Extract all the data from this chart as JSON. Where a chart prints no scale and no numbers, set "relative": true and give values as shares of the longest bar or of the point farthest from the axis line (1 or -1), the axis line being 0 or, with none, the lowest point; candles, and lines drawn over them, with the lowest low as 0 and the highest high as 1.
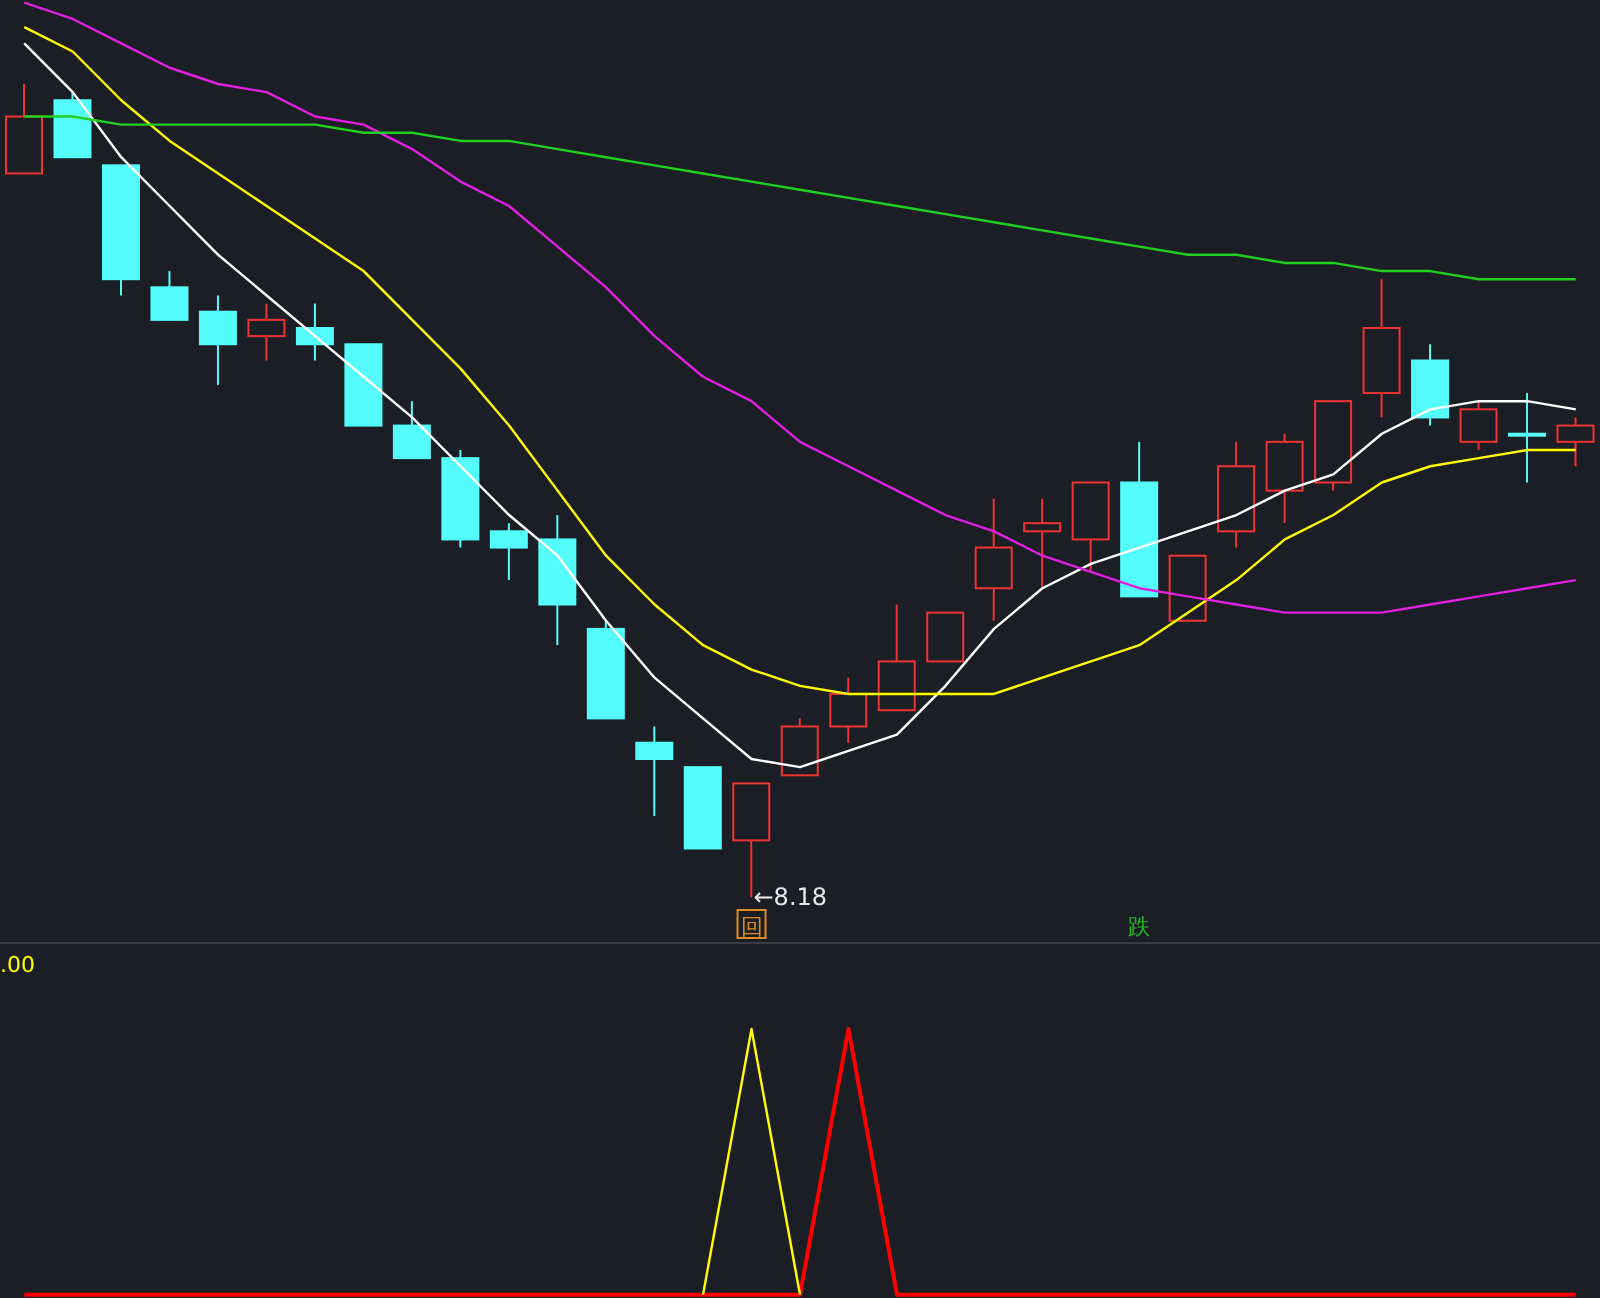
{
  "chart_data": [
    {
      "type": "candlestick",
      "relative": true,
      "categories": [
        null,
        null,
        null,
        null,
        null,
        null,
        null,
        null,
        null,
        null,
        null,
        null,
        null,
        null,
        null,
        null,
        null,
        null,
        null,
        null,
        null,
        null,
        null,
        null,
        null,
        null,
        null,
        null,
        null,
        null,
        null,
        null,
        null
      ],
      "ohlc": [
        [
          0.89,
          1,
          0.89,
          0.96
        ],
        [
          0.98,
          0.99,
          0.91,
          0.91
        ],
        [
          0.9,
          0.9,
          0.74,
          0.76
        ],
        [
          0.75,
          0.77,
          0.71,
          0.71
        ],
        [
          0.72,
          0.74,
          0.63,
          0.68
        ],
        [
          0.69,
          0.73,
          0.66,
          0.71
        ],
        [
          0.7,
          0.73,
          0.66,
          0.68
        ],
        [
          0.68,
          0.68,
          0.58,
          0.58
        ],
        [
          0.58,
          0.61,
          0.54,
          0.54
        ],
        [
          0.54,
          0.55,
          0.43,
          0.44
        ],
        [
          0.45,
          0.46,
          0.39,
          0.43
        ],
        [
          0.44,
          0.47,
          0.31,
          0.36
        ],
        [
          0.33,
          0.34,
          0.22,
          0.22
        ],
        [
          0.19,
          0.21,
          0.1,
          0.17
        ],
        [
          0.16,
          0.16,
          0.06,
          0.06
        ],
        [
          0.07,
          0.14,
          0,
          0.14
        ],
        [
          0.15,
          0.22,
          0.15,
          0.21
        ],
        [
          0.21,
          0.27,
          0.19,
          0.25
        ],
        [
          0.23,
          0.36,
          0.23,
          0.29
        ],
        [
          0.29,
          0.35,
          0.29,
          0.35
        ],
        [
          0.38,
          0.49,
          0.34,
          0.43
        ],
        [
          0.45,
          0.49,
          0.38,
          0.46
        ],
        [
          0.44,
          0.51,
          0.4,
          0.51
        ],
        [
          0.51,
          0.56,
          0.37,
          0.37
        ],
        [
          0.34,
          0.42,
          0.34,
          0.42
        ],
        [
          0.45,
          0.56,
          0.43,
          0.53
        ],
        [
          0.5,
          0.57,
          0.46,
          0.56
        ],
        [
          0.51,
          0.61,
          0.5,
          0.61
        ],
        [
          0.62,
          0.76,
          0.59,
          0.7
        ],
        [
          0.66,
          0.68,
          0.58,
          0.59
        ],
        [
          0.56,
          0.61,
          0.55,
          0.6
        ],
        [
          0.57,
          0.62,
          0.51,
          0.57
        ],
        [
          0.56,
          0.59,
          0.53,
          0.58
        ]
      ],
      "colors": [
        "#ee3333",
        "#54fcfc",
        "#54fcfc",
        "#54fcfc",
        "#54fcfc",
        "#ee3333",
        "#54fcfc",
        "#54fcfc",
        "#54fcfc",
        "#54fcfc",
        "#54fcfc",
        "#54fcfc",
        "#54fcfc",
        "#54fcfc",
        "#54fcfc",
        "#ee3333",
        "#ee3333",
        "#ee3333",
        "#ee3333",
        "#ee3333",
        "#ee3333",
        "#ee3333",
        "#ee3333",
        "#54fcfc",
        "#ee3333",
        "#ee3333",
        "#ee3333",
        "#ee3333",
        "#ee3333",
        "#54fcfc",
        "#ee3333",
        "#54fcfc",
        "#ee3333"
      ],
      "series": [
        {
          "type": "line",
          "color": "#ffffff",
          "values": [
            1.05,
            0.99,
            0.91,
            0.85,
            0.79,
            0.74,
            0.69,
            0.64,
            0.59,
            0.53,
            0.47,
            0.42,
            0.34,
            0.27,
            0.22,
            0.17,
            0.16,
            0.18,
            0.2,
            0.26,
            0.33,
            0.38,
            0.41,
            0.43,
            0.45,
            0.47,
            0.5,
            0.52,
            0.57,
            0.6,
            0.61,
            0.61,
            0.6
          ]
        },
        {
          "type": "line",
          "color": "#ffff00",
          "values": [
            1.07,
            1.04,
            0.98,
            0.93,
            0.89,
            0.85,
            0.81,
            0.77,
            0.71,
            0.65,
            0.58,
            0.5,
            0.42,
            0.36,
            0.31,
            0.28,
            0.26,
            0.25,
            0.25,
            0.25,
            0.25,
            0.27,
            0.29,
            0.31,
            0.35,
            0.39,
            0.44,
            0.47,
            0.51,
            0.53,
            0.54,
            0.55,
            0.55
          ]
        },
        {
          "type": "line",
          "color": "#e020e0",
          "values": [
            1.1,
            1.08,
            1.05,
            1.02,
            1,
            0.99,
            0.96,
            0.95,
            0.92,
            0.88,
            0.85,
            0.8,
            0.75,
            0.69,
            0.64,
            0.61,
            0.56,
            0.53,
            0.5,
            0.47,
            0.45,
            0.42,
            0.4,
            0.38,
            0.37,
            0.36,
            0.35,
            0.35,
            0.35,
            0.36,
            0.37,
            0.38,
            0.39
          ]
        },
        {
          "type": "line",
          "color": "#20d020",
          "values": [
            0.96,
            0.96,
            0.95,
            0.95,
            0.95,
            0.95,
            0.95,
            0.94,
            0.94,
            0.93,
            0.93,
            0.92,
            0.91,
            0.9,
            0.89,
            0.88,
            0.87,
            0.86,
            0.85,
            0.84,
            0.83,
            0.82,
            0.81,
            0.8,
            0.79,
            0.79,
            0.78,
            0.78,
            0.77,
            0.77,
            0.76,
            0.76,
            0.76
          ]
        }
      ],
      "annotations": [
        "←8.18",
        "回",
        "跌"
      ]
    },
    {
      "type": "line",
      "relative": true,
      "categories": [
        null,
        null,
        null,
        null,
        null,
        null,
        null,
        null,
        null,
        null,
        null,
        null,
        null,
        null,
        null,
        null,
        null,
        null,
        null,
        null,
        null,
        null,
        null,
        null,
        null,
        null,
        null,
        null,
        null,
        null,
        null,
        null,
        null
      ],
      "series": [
        {
          "color": "#ff0000",
          "values": [
            0,
            0,
            0,
            0,
            0,
            0,
            0,
            0,
            0,
            0,
            0,
            0,
            0,
            0,
            0,
            0,
            0,
            1,
            0,
            0,
            0,
            0,
            0,
            0,
            0,
            0,
            0,
            0,
            0,
            0,
            0,
            0,
            0
          ]
        },
        {
          "color": "#ffff00",
          "values": [
            null,
            null,
            null,
            null,
            null,
            null,
            null,
            null,
            null,
            null,
            null,
            null,
            null,
            null,
            0,
            1,
            0,
            null,
            null,
            null,
            null,
            null,
            null,
            null,
            null,
            null,
            null,
            null,
            null,
            null,
            null,
            null,
            null
          ]
        }
      ],
      "annotations": [
        ".00"
      ]
    }
  ]
}
